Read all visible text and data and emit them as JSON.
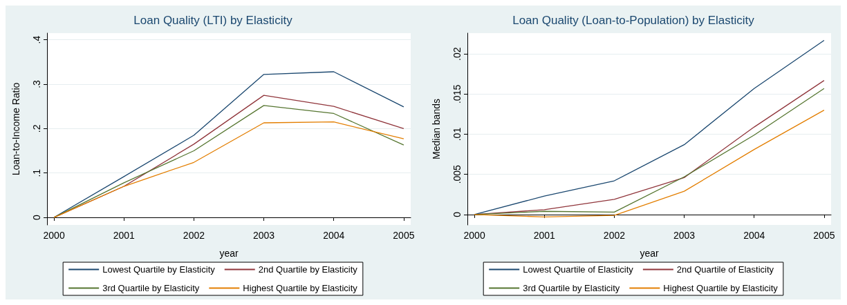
{
  "chart_data": [
    {
      "type": "line",
      "title": "Loan Quality (LTI) by Elasticity",
      "xlabel": "year",
      "ylabel": "Loan-to-Income Ratio",
      "x": [
        2000,
        2001,
        2002,
        2003,
        2004,
        2005
      ],
      "xlim": [
        1999.9,
        2005.1
      ],
      "xticks": [
        2000,
        2001,
        2002,
        2003,
        2004,
        2005
      ],
      "ylim": [
        -0.017,
        0.415
      ],
      "yticks": [
        {
          "value": 0,
          "label": "0"
        },
        {
          "value": 0.1,
          "label": ".1"
        },
        {
          "value": 0.2,
          "label": ".2"
        },
        {
          "value": 0.3,
          "label": ".3"
        },
        {
          "value": 0.4,
          "label": ".4"
        }
      ],
      "grid": "y",
      "legend": "bottom",
      "marker": "none",
      "series": [
        {
          "name": "Lowest Quartile by Elasticity",
          "color": "#1a476f",
          "values": [
            0,
            0.092,
            0.185,
            0.322,
            0.328,
            0.249
          ]
        },
        {
          "name": "2nd Quartile by Elasticity",
          "color": "#90353b",
          "values": [
            0,
            0.07,
            0.165,
            0.275,
            0.25,
            0.2
          ]
        },
        {
          "name": "3rd Quartile by Elasticity",
          "color": "#55752f",
          "values": [
            0,
            0.078,
            0.15,
            0.252,
            0.234,
            0.163
          ]
        },
        {
          "name": "Highest Quartile by Elasticity",
          "color": "#e37e00",
          "values": [
            0,
            0.07,
            0.124,
            0.213,
            0.215,
            0.177
          ]
        }
      ]
    },
    {
      "type": "line",
      "title": "Loan Quality (Loan-to-Population) by Elasticity",
      "xlabel": "year",
      "ylabel": "Median bands",
      "x": [
        2000,
        2001,
        2002,
        2003,
        2004,
        2005
      ],
      "xlim": [
        1999.9,
        2005.1
      ],
      "xticks": [
        2000,
        2001,
        2002,
        2003,
        2004,
        2005
      ],
      "ylim": [
        -0.0013,
        0.0226
      ],
      "yticks": [
        {
          "value": 0,
          "label": "0"
        },
        {
          "value": 0.005,
          "label": ".005"
        },
        {
          "value": 0.01,
          "label": ".01"
        },
        {
          "value": 0.015,
          "label": ".015"
        },
        {
          "value": 0.02,
          "label": ".02"
        }
      ],
      "grid": "y",
      "legend": "bottom",
      "marker": "none",
      "series": [
        {
          "name": "Lowest Quartile of Elasticity",
          "color": "#1a476f",
          "values": [
            0,
            0.0023,
            0.0042,
            0.0087,
            0.0157,
            0.0217
          ]
        },
        {
          "name": "2nd Quartile of Elasticity",
          "color": "#90353b",
          "values": [
            0,
            0.0006,
            0.0019,
            0.0046,
            0.0109,
            0.0167
          ]
        },
        {
          "name": "3rd Quartile by Elasticity",
          "color": "#55752f",
          "values": [
            0,
            0.0004,
            0.0003,
            0.0047,
            0.0099,
            0.0157
          ]
        },
        {
          "name": "Highest Quartile by Elasticity",
          "color": "#e37e00",
          "values": [
            0,
            -0.0003,
            -0.0001,
            0.0029,
            0.0081,
            0.013
          ]
        }
      ]
    }
  ]
}
